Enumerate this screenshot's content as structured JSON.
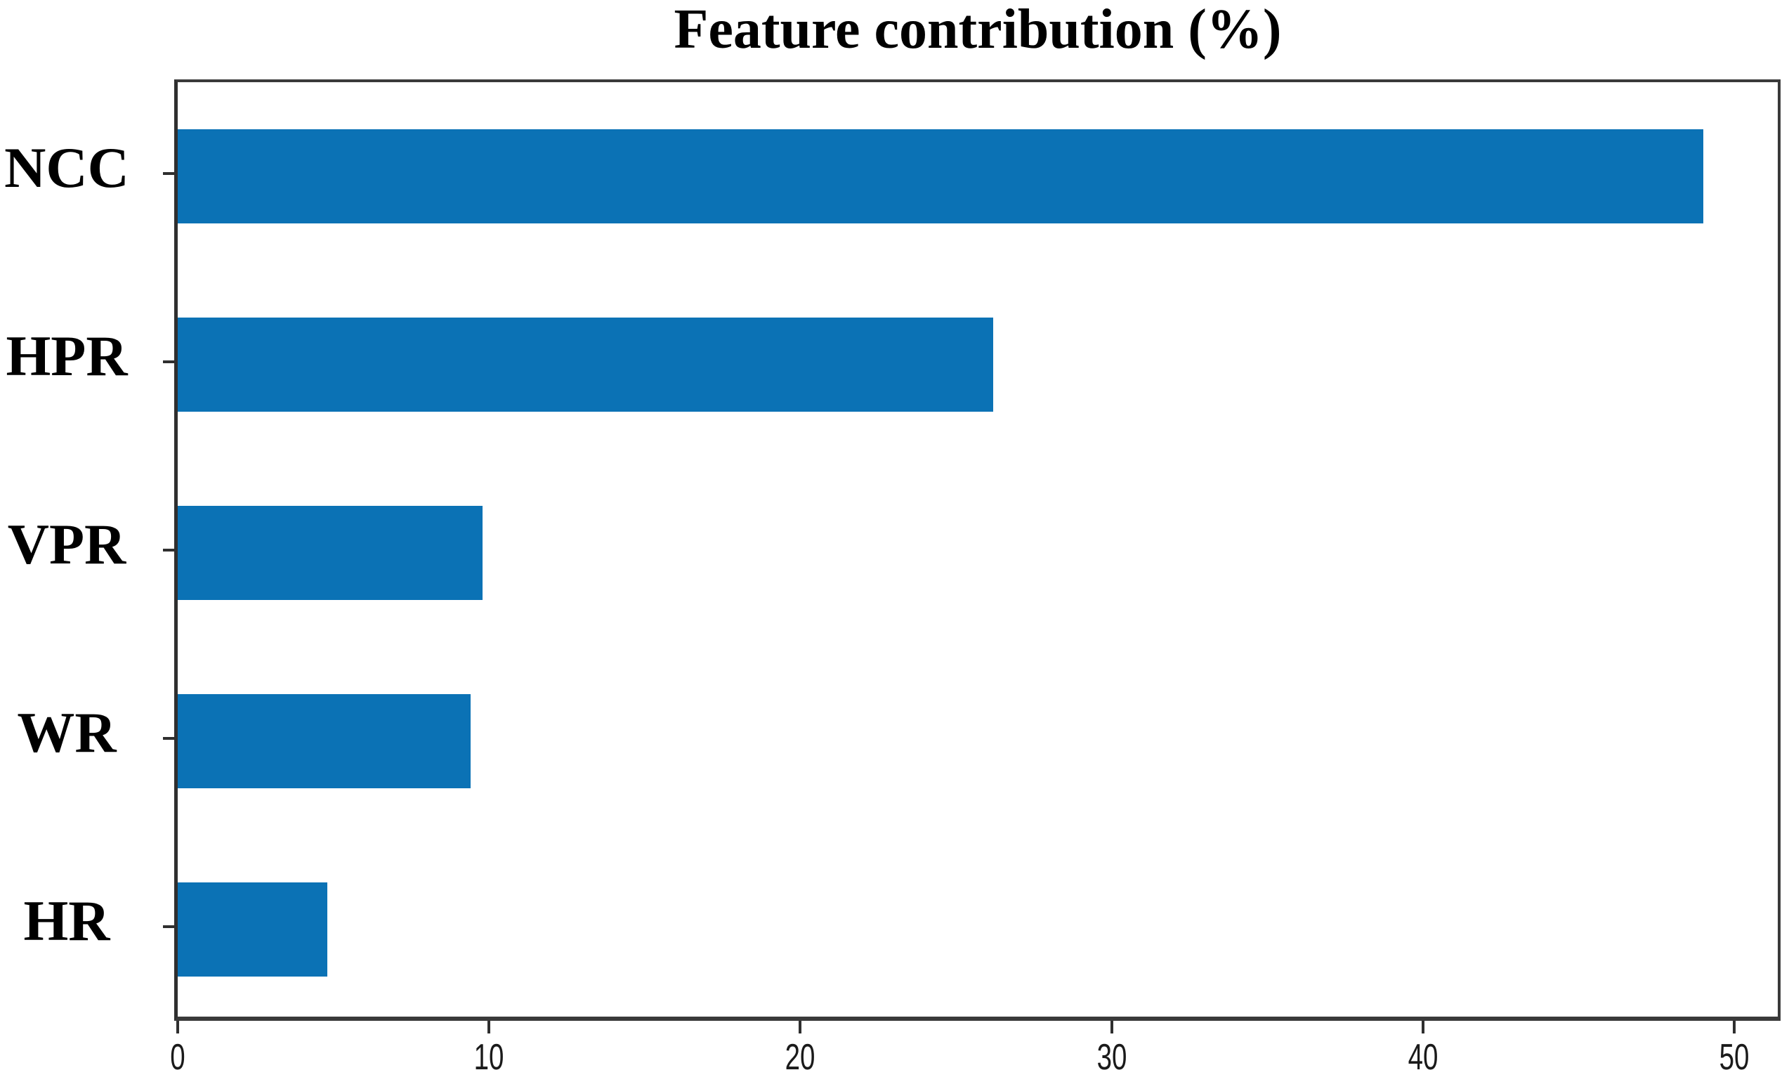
{
  "title": "Feature contribution (%)",
  "colors": {
    "bar": "#0b72b5",
    "axis": "#3a3a3a",
    "tick": "#2f2f2f",
    "text": "#000000"
  },
  "chart_data": {
    "type": "bar",
    "orientation": "horizontal",
    "title": "Feature contribution (%)",
    "categories": [
      "NCC",
      "HPR",
      "VPR",
      "WR",
      "HR"
    ],
    "values": [
      49,
      26.2,
      9.8,
      9.4,
      4.8
    ],
    "xlabel": "",
    "ylabel": "",
    "xlim": [
      0,
      51.4
    ],
    "xticks": [
      0,
      10,
      20,
      30,
      40,
      50
    ],
    "grid": false,
    "legend": false,
    "bar_fraction_of_row": 0.5
  }
}
